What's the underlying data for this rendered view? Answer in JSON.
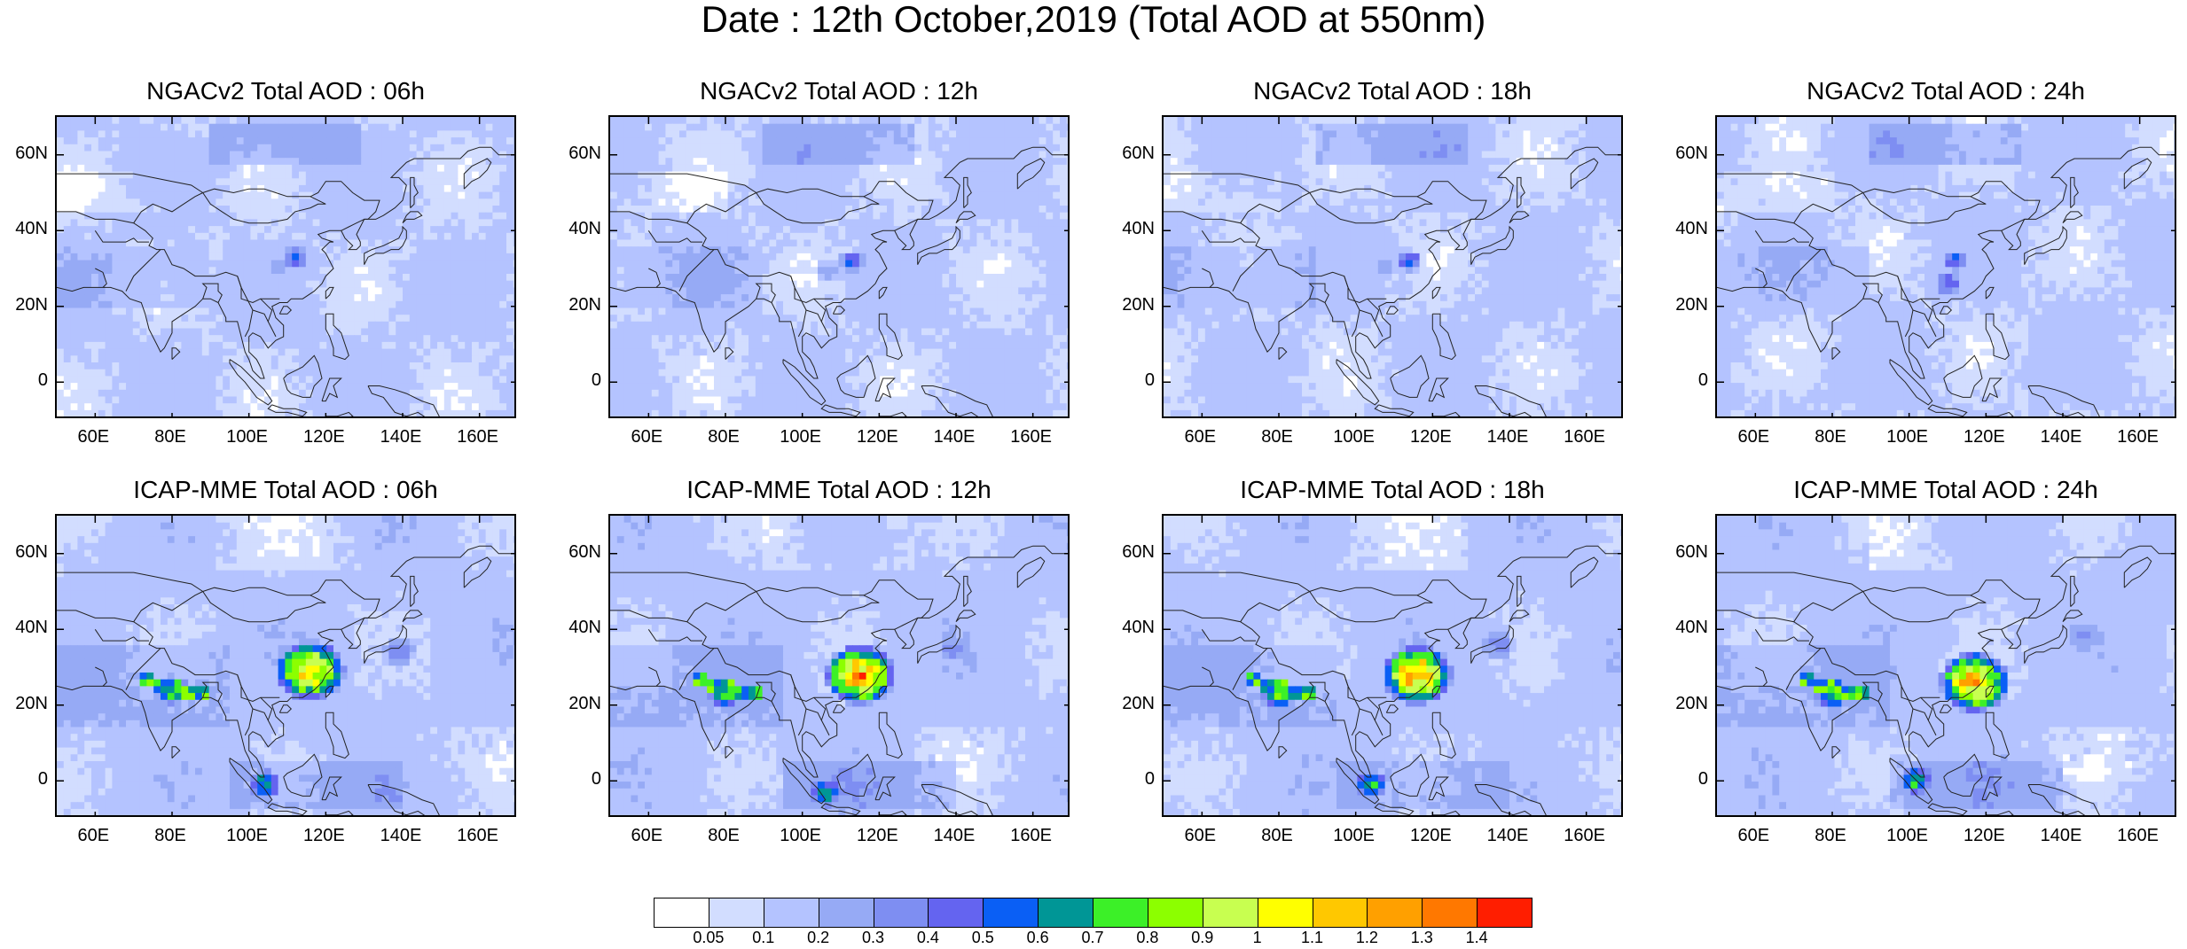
{
  "title": "Date : 12th October,2019 (Total AOD at 550nm)",
  "panels": [
    {
      "title": "NGACv2 Total AOD : 06h",
      "model": "ngac",
      "hour": "06h"
    },
    {
      "title": "NGACv2 Total AOD : 12h",
      "model": "ngac",
      "hour": "12h"
    },
    {
      "title": "NGACv2 Total AOD : 18h",
      "model": "ngac",
      "hour": "18h"
    },
    {
      "title": "NGACv2 Total AOD : 24h",
      "model": "ngac",
      "hour": "24h"
    },
    {
      "title": "ICAP-MME Total AOD : 06h",
      "model": "icap",
      "hour": "06h"
    },
    {
      "title": "ICAP-MME Total AOD : 12h",
      "model": "icap",
      "hour": "12h"
    },
    {
      "title": "ICAP-MME Total AOD : 18h",
      "model": "icap",
      "hour": "18h"
    },
    {
      "title": "ICAP-MME Total AOD : 24h",
      "model": "icap",
      "hour": "24h"
    }
  ],
  "axes": {
    "lat_ticks": [
      "60N",
      "40N",
      "20N",
      "0"
    ],
    "lon_ticks": [
      "60E",
      "80E",
      "100E",
      "120E",
      "140E",
      "160E"
    ],
    "lat_values": [
      60,
      40,
      20,
      0
    ],
    "lon_values": [
      60,
      80,
      100,
      120,
      140,
      160
    ],
    "lon_range": [
      50,
      170
    ],
    "lat_range": [
      -10,
      70
    ]
  },
  "colorbar": {
    "colors": [
      "#ffffff",
      "#d2ddff",
      "#b4c3ff",
      "#96aaf5",
      "#7e8ef2",
      "#6464f0",
      "#0a5ff5",
      "#009696",
      "#3cf028",
      "#8cff00",
      "#c8ff50",
      "#ffff00",
      "#ffc800",
      "#ffa000",
      "#ff7800",
      "#ff1e00"
    ],
    "labels": [
      "0.05",
      "0.1",
      "0.2",
      "0.3",
      "0.4",
      "0.5",
      "0.6",
      "0.7",
      "0.8",
      "0.9",
      "1",
      "1.1",
      "1.2",
      "1.3",
      "1.4"
    ]
  },
  "chart_data": {
    "type": "heatmap",
    "title": "Date : 12th October,2019 (Total AOD at 550nm)",
    "variable": "Total AOD at 550nm",
    "xlim": [
      50,
      170
    ],
    "ylim": [
      -10,
      70
    ],
    "x_ticks": [
      "60E",
      "80E",
      "100E",
      "120E",
      "140E",
      "160E"
    ],
    "y_ticks": [
      "60N",
      "40N",
      "20N",
      "0"
    ],
    "contour_levels": [
      0.05,
      0.1,
      0.2,
      0.3,
      0.4,
      0.5,
      0.6,
      0.7,
      0.8,
      0.9,
      1,
      1.1,
      1.2,
      1.3,
      1.4
    ],
    "panels": [
      {
        "name": "NGACv2 Total AOD : 06h",
        "background_aod": 0.1,
        "hotspots": [
          {
            "lon": 112,
            "lat": 33,
            "aod": 0.6
          },
          {
            "lon": 108,
            "lat": 30,
            "aod": 0.3
          },
          {
            "lon": 75,
            "lat": 28,
            "aod": 0.2
          }
        ]
      },
      {
        "name": "NGACv2 Total AOD : 12h",
        "background_aod": 0.1,
        "hotspots": [
          {
            "lon": 113,
            "lat": 32,
            "aod": 0.6
          },
          {
            "lon": 107,
            "lat": 29,
            "aod": 0.3
          },
          {
            "lon": 75,
            "lat": 28,
            "aod": 0.2
          }
        ]
      },
      {
        "name": "NGACv2 Total AOD : 18h",
        "background_aod": 0.1,
        "hotspots": [
          {
            "lon": 114,
            "lat": 32,
            "aod": 0.6
          },
          {
            "lon": 108,
            "lat": 30,
            "aod": 0.3
          },
          {
            "lon": 75,
            "lat": 28,
            "aod": 0.2
          }
        ]
      },
      {
        "name": "NGACv2 Total AOD : 24h",
        "background_aod": 0.1,
        "hotspots": [
          {
            "lon": 112,
            "lat": 32,
            "aod": 0.6
          },
          {
            "lon": 110,
            "lat": 26,
            "aod": 0.6
          },
          {
            "lon": 75,
            "lat": 28,
            "aod": 0.2
          }
        ]
      },
      {
        "name": "ICAP-MME Total AOD : 06h",
        "background_aod": 0.1,
        "hotspots": [
          {
            "lon": 116,
            "lat": 29,
            "aod": 1.3
          },
          {
            "lon": 80,
            "lat": 24,
            "aod": 0.9
          },
          {
            "lon": 104,
            "lat": -1,
            "aod": 0.8
          },
          {
            "lon": 139,
            "lat": 34,
            "aod": 0.4
          }
        ]
      },
      {
        "name": "ICAP-MME Total AOD : 12h",
        "background_aod": 0.1,
        "hotspots": [
          {
            "lon": 115,
            "lat": 28,
            "aod": 1.4
          },
          {
            "lon": 80,
            "lat": 23,
            "aod": 0.9
          },
          {
            "lon": 106,
            "lat": -3,
            "aod": 0.8
          },
          {
            "lon": 140,
            "lat": 35,
            "aod": 0.4
          }
        ]
      },
      {
        "name": "ICAP-MME Total AOD : 18h",
        "background_aod": 0.1,
        "hotspots": [
          {
            "lon": 116,
            "lat": 28,
            "aod": 1.4
          },
          {
            "lon": 80,
            "lat": 23,
            "aod": 0.9
          },
          {
            "lon": 104,
            "lat": -1,
            "aod": 0.8
          },
          {
            "lon": 137,
            "lat": 36,
            "aod": 0.4
          }
        ]
      },
      {
        "name": "ICAP-MME Total AOD : 24h",
        "background_aod": 0.1,
        "hotspots": [
          {
            "lon": 117,
            "lat": 26,
            "aod": 1.4
          },
          {
            "lon": 80,
            "lat": 23,
            "aod": 0.9
          },
          {
            "lon": 102,
            "lat": 0,
            "aod": 0.8
          },
          {
            "lon": 145,
            "lat": 38,
            "aod": 0.4
          }
        ]
      }
    ]
  }
}
